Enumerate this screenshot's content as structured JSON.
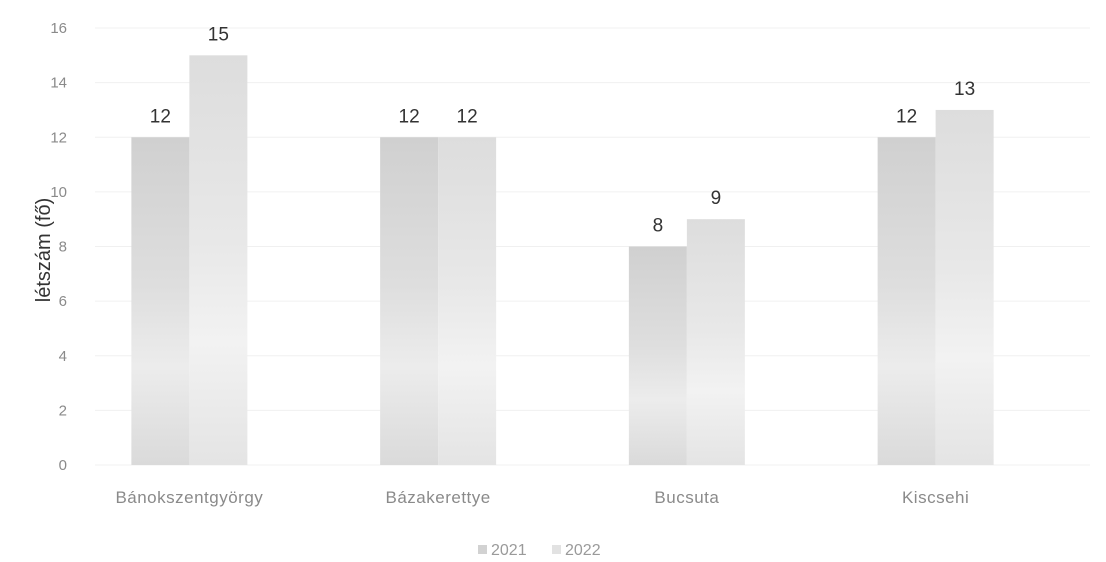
{
  "chart_data": {
    "type": "bar",
    "ylabel": "létszám (fő)",
    "xlabel": "",
    "ylim": [
      0,
      16
    ],
    "yticks": [
      0,
      2,
      4,
      6,
      8,
      10,
      12,
      14,
      16
    ],
    "categories": [
      "Bánokszentgyörgy",
      "Bázakerettye",
      "Bucsuta",
      "Kiscsehi"
    ],
    "series": [
      {
        "name": "2021",
        "values": [
          12,
          12,
          8,
          12
        ],
        "color": "#d2d2d2"
      },
      {
        "name": "2022",
        "values": [
          15,
          12,
          9,
          13
        ],
        "color": "#e2e2e2"
      }
    ],
    "grid": true,
    "legend": "bottom"
  }
}
